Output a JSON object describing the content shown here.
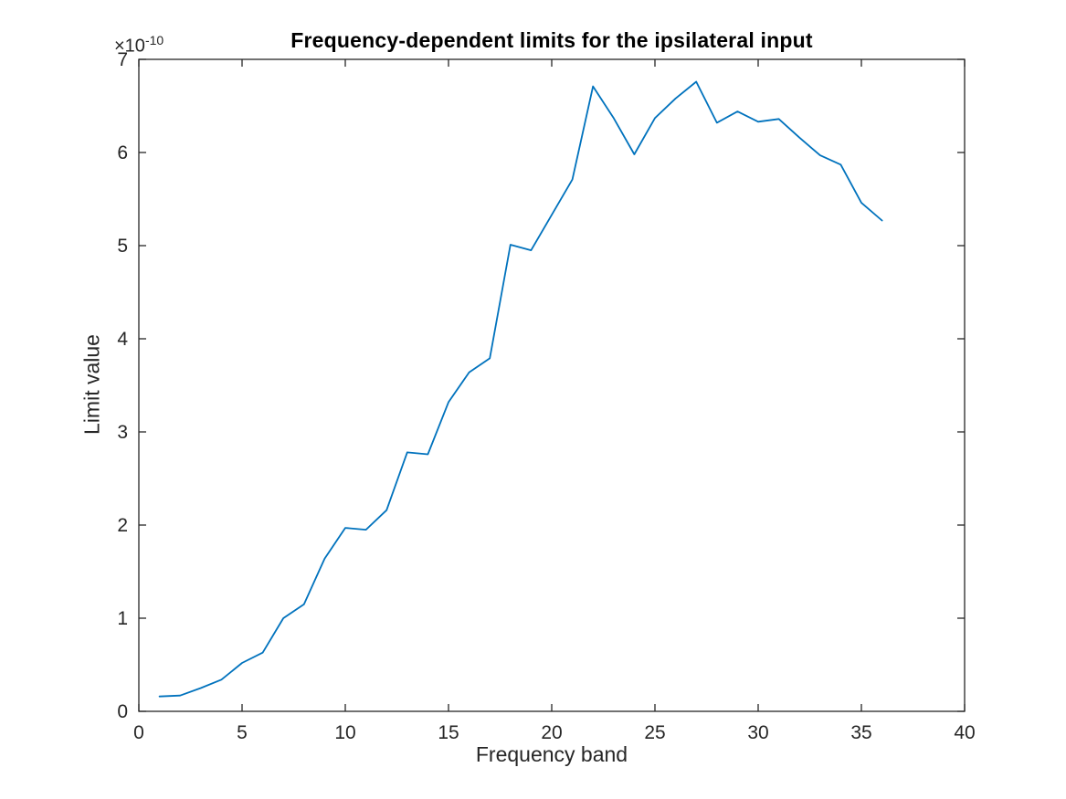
{
  "chart_data": {
    "type": "line",
    "title": "Frequency-dependent limits for the ipsilateral input",
    "xlabel": "Frequency band",
    "ylabel": "Limit value",
    "y_offset": {
      "base": "×10",
      "exponent": "-10"
    },
    "xlim": [
      0,
      40
    ],
    "ylim": [
      0,
      7
    ],
    "xticks": [
      0,
      5,
      10,
      15,
      20,
      25,
      30,
      35,
      40
    ],
    "yticks": [
      0,
      1,
      2,
      3,
      4,
      5,
      6,
      7
    ],
    "grid": false,
    "legend": "none",
    "box": true,
    "value_scale": "1e-10",
    "x": [
      1,
      2,
      3,
      4,
      5,
      6,
      7,
      8,
      9,
      10,
      11,
      12,
      13,
      14,
      15,
      16,
      17,
      18,
      19,
      20,
      21,
      22,
      23,
      24,
      25,
      26,
      27,
      28,
      29,
      30,
      31,
      32,
      33,
      34,
      35,
      36
    ],
    "values": [
      0.16,
      0.17,
      0.25,
      0.34,
      0.52,
      0.63,
      1.0,
      1.15,
      1.64,
      1.97,
      1.95,
      2.16,
      2.78,
      2.76,
      3.32,
      3.64,
      3.79,
      5.01,
      4.95,
      5.33,
      5.71,
      6.71,
      6.37,
      5.98,
      6.37,
      6.58,
      6.76,
      6.32,
      6.44,
      6.33,
      6.36,
      6.16,
      5.97,
      5.87,
      5.46,
      5.27
    ],
    "series_name": "Limit value",
    "colors": {
      "line": "#0072BD",
      "axes": "#262626",
      "tick_labels": "#262626",
      "title": "#000000",
      "background": "#FFFFFF"
    }
  }
}
